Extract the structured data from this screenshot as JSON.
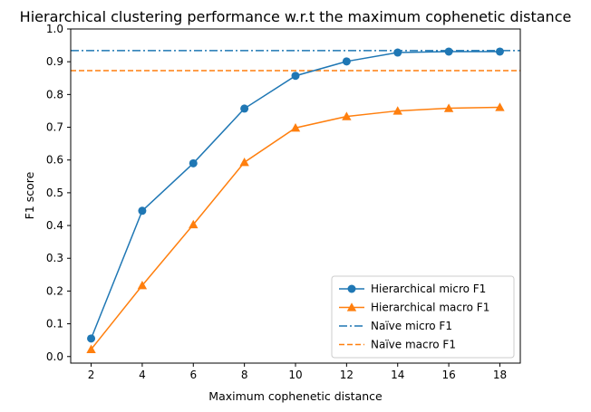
{
  "chart_data": {
    "type": "line",
    "title": "Hierarchical clustering performance w.r.t the maximum cophenetic distance",
    "xlabel": "Maximum cophenetic distance",
    "ylabel": "F1 score",
    "x": [
      2,
      4,
      6,
      8,
      10,
      12,
      14,
      16,
      18
    ],
    "xlim": [
      1.2,
      18.8
    ],
    "ylim": [
      -0.02,
      1.0
    ],
    "xticks": [
      2,
      4,
      6,
      8,
      10,
      12,
      14,
      16,
      18
    ],
    "yticks": [
      0.0,
      0.1,
      0.2,
      0.3,
      0.4,
      0.5,
      0.6,
      0.7,
      0.8,
      0.9,
      1.0
    ],
    "grid": false,
    "legend_position": "bottom-right",
    "series": [
      {
        "name": "Hierarchical micro F1",
        "style": "solid",
        "marker": "circle",
        "color": "#1f77b4",
        "values": [
          0.055,
          0.445,
          0.59,
          0.757,
          0.857,
          0.901,
          0.928,
          0.931,
          0.931
        ]
      },
      {
        "name": "Hierarchical macro F1",
        "style": "solid",
        "marker": "triangle",
        "color": "#ff7f0e",
        "values": [
          0.022,
          0.217,
          0.403,
          0.593,
          0.698,
          0.733,
          0.75,
          0.758,
          0.761
        ]
      }
    ],
    "hlines": [
      {
        "name": "Naïve micro F1",
        "value": 0.934,
        "style": "dashdot",
        "color": "#1f77b4"
      },
      {
        "name": "Naïve macro F1",
        "value": 0.873,
        "style": "dashed",
        "color": "#ff7f0e"
      }
    ]
  }
}
